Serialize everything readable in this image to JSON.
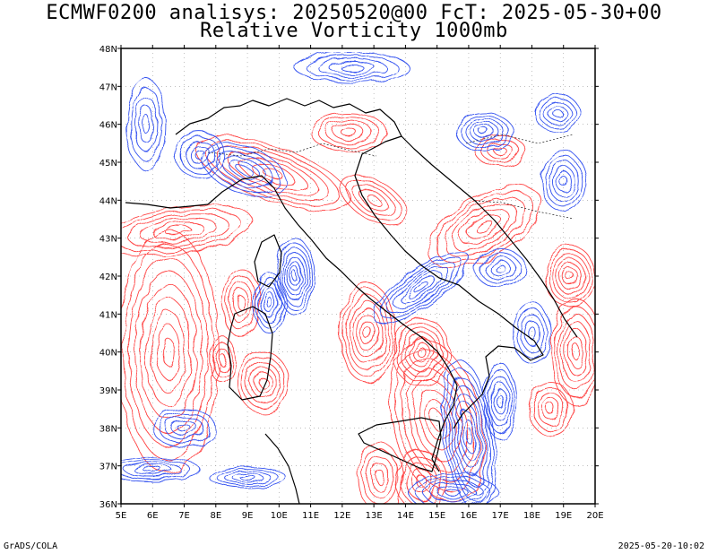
{
  "title": {
    "line1": "ECMWF0200 analisys: 20250520@00 FcT: 2025-05-30+00",
    "line2": "Relative Vorticity 1000mb"
  },
  "footer": {
    "left": "GrADS/COLA",
    "right": "2025-05-20-10:02"
  },
  "map": {
    "lon_labels": [
      "5E",
      "6E",
      "7E",
      "8E",
      "9E",
      "10E",
      "11E",
      "12E",
      "13E",
      "14E",
      "15E",
      "16E",
      "17E",
      "18E",
      "19E",
      "20E"
    ],
    "lat_labels": [
      "36N",
      "37N",
      "38N",
      "39N",
      "40N",
      "41N",
      "42N",
      "43N",
      "44N",
      "45N",
      "46N",
      "47N",
      "48N"
    ],
    "lon_range": [
      5,
      20
    ],
    "lat_range": [
      36,
      48
    ],
    "colors": {
      "positive": "#ff4040",
      "negative": "#3050f0",
      "coast": "#000000",
      "grid": "#999999"
    }
  }
}
